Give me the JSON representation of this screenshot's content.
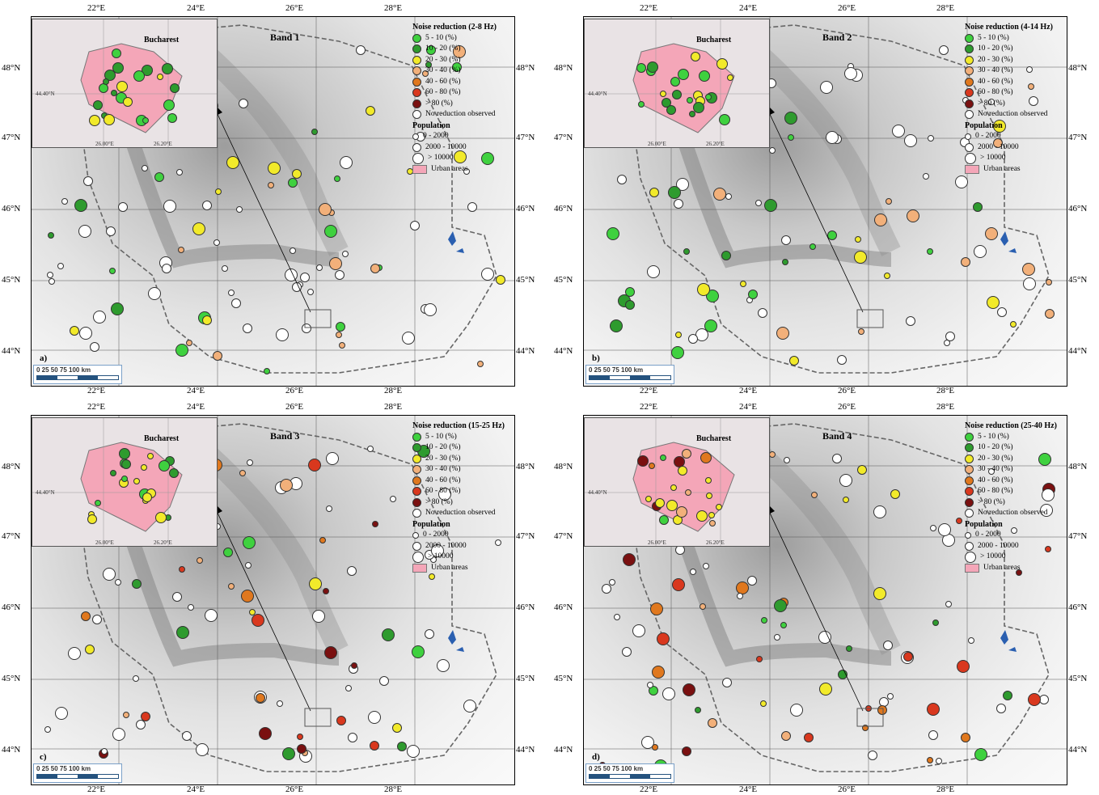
{
  "lon_labels": [
    "22°E",
    "24°E",
    "26°E",
    "28°E"
  ],
  "lat_labels": [
    "48°N",
    "47°N",
    "46°N",
    "45°N",
    "44°N"
  ],
  "legend": {
    "classes": [
      {
        "label": "5 - 10 (%)",
        "color": "#3fd13f"
      },
      {
        "label": "10 - 20 (%)",
        "color": "#2e9b2e"
      },
      {
        "label": "20 - 30 (%)",
        "color": "#f2ea2a"
      },
      {
        "label": "30 - 40 (%)",
        "color": "#f2b07a"
      },
      {
        "label": "40 - 60 (%)",
        "color": "#e0781e"
      },
      {
        "label": "60 - 80 (%)",
        "color": "#d9381e"
      },
      {
        "label": "> 80 (%)",
        "color": "#7a1010"
      },
      {
        "label": "No reduction observed",
        "color": "#ffffff"
      }
    ],
    "population_title": "Population",
    "population": [
      "0 - 2000",
      "2000 - 10000",
      "> 10000"
    ],
    "urban": "Urban areas"
  },
  "inset": {
    "title": "Bucharest",
    "lat": "44.40°N",
    "lon_left": "26.00°E",
    "lon_right": "26.20°E"
  },
  "scale": "0   25   50   75  100 km",
  "panels": [
    {
      "band": "Band 1",
      "noise": "Noise reduction (2-8 Hz)",
      "letter": "a)"
    },
    {
      "band": "Band 2",
      "noise": "Noise reduction (4-14 Hz)",
      "letter": "b)"
    },
    {
      "band": "Band 3",
      "noise": "Noise reduction (15-25 Hz)",
      "letter": "c)"
    },
    {
      "band": "Band 4",
      "noise": "Noise reduction (25-40 Hz)",
      "letter": "d)"
    }
  ]
}
